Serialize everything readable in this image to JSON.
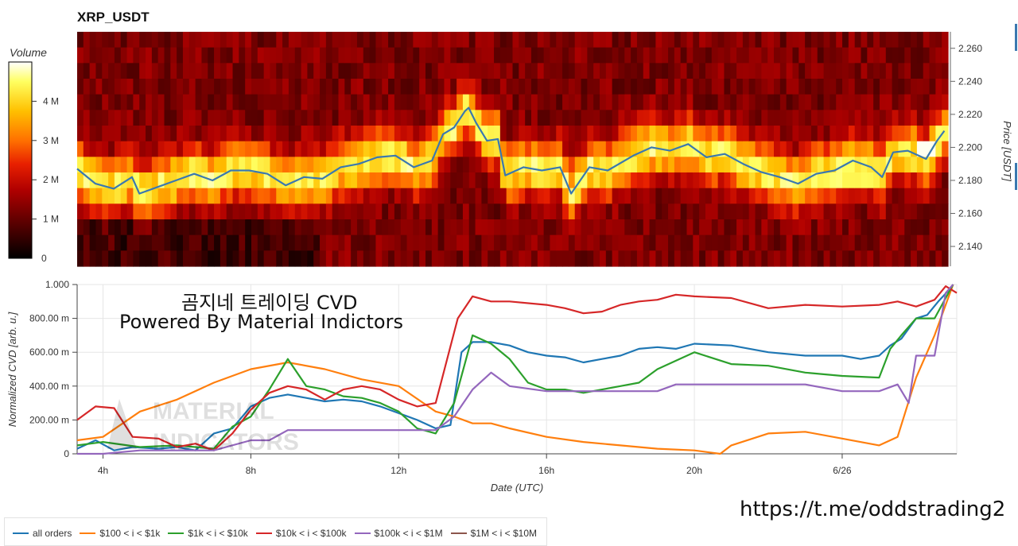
{
  "header": {
    "title": "XRP_USDT"
  },
  "overlay": {
    "line1": "곰지네 트레이딩 CVD",
    "line2": "Powered By Material Indictors",
    "url": "https://t.me/oddstrading2",
    "logo_text": [
      "MATERIAL",
      "INDICATORS"
    ]
  },
  "chart_data": [
    {
      "type": "heatmap",
      "title": "XRP_USDT",
      "colorbar_label": "Volume",
      "colorbar_ticks": [
        "0",
        "1 M",
        "2 M",
        "3 M",
        "4 M"
      ],
      "colorbar_range": [
        0,
        5000000
      ],
      "color_scale": [
        "#000000",
        "#5a0000",
        "#b00000",
        "#e82000",
        "#ff7000",
        "#ffc000",
        "#ffff60",
        "#ffffff"
      ],
      "ylabel": "Price [USDT]",
      "ylim": [
        2.128,
        2.27
      ],
      "yticks": [
        2.14,
        2.16,
        2.18,
        2.2,
        2.22,
        2.24,
        2.26
      ],
      "ytick_labels": [
        "2.140",
        "2.160",
        "2.180",
        "2.200",
        "2.220",
        "2.240",
        "2.260"
      ],
      "xlim_hours": [
        3.3,
        27.1
      ],
      "price_line": {
        "color": "#3a78b0",
        "x_hours": [
          3.3,
          3.8,
          4.3,
          4.8,
          5.0,
          5.5,
          6.0,
          6.5,
          7.0,
          7.5,
          8.0,
          8.5,
          9.0,
          9.5,
          10.0,
          10.5,
          11.0,
          11.5,
          12.0,
          12.5,
          13.0,
          13.3,
          13.6,
          13.9,
          14.0,
          14.2,
          14.5,
          14.8,
          15.0,
          15.5,
          16.0,
          16.5,
          16.8,
          17.3,
          17.8,
          18.5,
          19.0,
          19.5,
          20.0,
          20.5,
          21.0,
          21.5,
          22.0,
          22.5,
          23.0,
          23.5,
          24.0,
          24.5,
          25.0,
          25.3,
          25.6,
          26.0,
          26.5,
          26.8,
          27.0
        ],
        "y": [
          2.187,
          2.178,
          2.175,
          2.182,
          2.172,
          2.176,
          2.18,
          2.184,
          2.18,
          2.186,
          2.186,
          2.184,
          2.177,
          2.182,
          2.181,
          2.188,
          2.19,
          2.194,
          2.195,
          2.188,
          2.192,
          2.208,
          2.212,
          2.222,
          2.224,
          2.215,
          2.204,
          2.205,
          2.183,
          2.188,
          2.186,
          2.188,
          2.172,
          2.188,
          2.186,
          2.195,
          2.2,
          2.198,
          2.202,
          2.194,
          2.196,
          2.19,
          2.185,
          2.182,
          2.178,
          2.184,
          2.186,
          2.192,
          2.188,
          2.182,
          2.197,
          2.198,
          2.193,
          2.204,
          2.21
        ]
      }
    },
    {
      "type": "line",
      "xlabel": "Date (UTC)",
      "ylabel": "Normalized CVD [arb. u.]",
      "xlim_hours": [
        3.3,
        27.1
      ],
      "ylim": [
        0,
        1.0
      ],
      "yticks": [
        0,
        0.2,
        0.4,
        0.6,
        0.8,
        1.0
      ],
      "ytick_labels": [
        "0",
        "200.00 m",
        "400.00 m",
        "600.00 m",
        "800.00 m",
        "1.000"
      ],
      "xticks_hours": [
        4,
        8,
        12,
        16,
        20,
        24
      ],
      "xtick_labels": [
        "4h",
        "8h",
        "12h",
        "16h",
        "20h",
        "6/26"
      ],
      "grid": true,
      "legend_position": "bottom-left",
      "series": [
        {
          "name": "all orders",
          "color": "#1f77b4",
          "x": [
            3.3,
            3.8,
            4.3,
            4.8,
            5.5,
            6.0,
            6.5,
            7.0,
            7.5,
            8.0,
            8.5,
            9.0,
            9.5,
            10.0,
            10.5,
            11.0,
            11.5,
            12.0,
            12.5,
            13.0,
            13.4,
            13.7,
            14.0,
            14.5,
            15.0,
            15.5,
            16.0,
            16.5,
            17.0,
            17.5,
            18.0,
            18.5,
            19.0,
            19.5,
            20.0,
            21.0,
            22.0,
            23.0,
            24.0,
            24.5,
            25.0,
            25.3,
            25.6,
            26.0,
            26.3,
            26.6,
            26.9,
            27.0
          ],
          "y": [
            0.03,
            0.08,
            0.02,
            0.04,
            0.03,
            0.04,
            0.02,
            0.12,
            0.15,
            0.28,
            0.33,
            0.35,
            0.33,
            0.31,
            0.32,
            0.31,
            0.28,
            0.24,
            0.2,
            0.15,
            0.17,
            0.6,
            0.66,
            0.66,
            0.64,
            0.6,
            0.58,
            0.57,
            0.54,
            0.56,
            0.58,
            0.62,
            0.63,
            0.62,
            0.65,
            0.64,
            0.6,
            0.58,
            0.58,
            0.56,
            0.58,
            0.64,
            0.68,
            0.8,
            0.82,
            0.9,
            0.97,
            1.0
          ]
        },
        {
          "name": "$100 < i < $1k",
          "color": "#ff7f0e",
          "x": [
            3.3,
            4.0,
            5.0,
            6.0,
            7.0,
            8.0,
            9.0,
            10.0,
            11.0,
            12.0,
            13.0,
            13.5,
            14.0,
            14.5,
            15.0,
            16.0,
            17.0,
            18.0,
            19.0,
            20.0,
            20.7,
            21.0,
            22.0,
            23.0,
            24.0,
            25.0,
            25.5,
            26.0,
            26.5,
            27.0
          ],
          "y": [
            0.08,
            0.1,
            0.25,
            0.32,
            0.42,
            0.5,
            0.54,
            0.5,
            0.44,
            0.4,
            0.25,
            0.22,
            0.18,
            0.18,
            0.15,
            0.1,
            0.07,
            0.05,
            0.03,
            0.02,
            0.0,
            0.05,
            0.12,
            0.13,
            0.09,
            0.05,
            0.1,
            0.45,
            0.7,
            1.0
          ]
        },
        {
          "name": "$1k < i < $10k",
          "color": "#2ca02c",
          "x": [
            3.3,
            4.0,
            5.0,
            6.0,
            7.0,
            7.5,
            8.0,
            8.5,
            9.0,
            9.5,
            10.0,
            10.5,
            11.0,
            11.5,
            12.0,
            12.5,
            13.0,
            13.5,
            14.0,
            14.5,
            15.0,
            15.5,
            16.0,
            16.5,
            17.0,
            17.5,
            18.0,
            18.5,
            19.0,
            19.5,
            20.0,
            21.0,
            22.0,
            23.0,
            24.0,
            25.0,
            25.3,
            25.6,
            26.0,
            26.5,
            27.0
          ],
          "y": [
            0.05,
            0.07,
            0.04,
            0.05,
            0.03,
            0.16,
            0.22,
            0.38,
            0.56,
            0.4,
            0.38,
            0.34,
            0.33,
            0.3,
            0.25,
            0.15,
            0.12,
            0.3,
            0.7,
            0.65,
            0.56,
            0.42,
            0.38,
            0.38,
            0.36,
            0.38,
            0.4,
            0.42,
            0.5,
            0.55,
            0.6,
            0.53,
            0.52,
            0.48,
            0.46,
            0.45,
            0.62,
            0.7,
            0.8,
            0.8,
            1.0
          ]
        },
        {
          "name": "$10k < i < $100k",
          "color": "#d62728",
          "x": [
            3.3,
            3.8,
            4.3,
            4.8,
            5.5,
            6.0,
            6.5,
            7.0,
            7.5,
            8.0,
            8.5,
            9.0,
            9.5,
            10.0,
            10.5,
            11.0,
            11.5,
            12.0,
            12.5,
            13.0,
            13.3,
            13.6,
            14.0,
            14.5,
            15.0,
            16.0,
            16.5,
            17.0,
            17.5,
            18.0,
            18.5,
            19.0,
            19.5,
            20.0,
            21.0,
            22.0,
            23.0,
            24.0,
            25.0,
            25.5,
            26.0,
            26.5,
            26.8,
            27.1
          ],
          "y": [
            0.2,
            0.28,
            0.27,
            0.1,
            0.09,
            0.04,
            0.06,
            0.02,
            0.12,
            0.26,
            0.36,
            0.4,
            0.38,
            0.32,
            0.38,
            0.4,
            0.38,
            0.32,
            0.28,
            0.3,
            0.55,
            0.8,
            0.93,
            0.9,
            0.9,
            0.88,
            0.86,
            0.83,
            0.84,
            0.88,
            0.9,
            0.91,
            0.94,
            0.93,
            0.92,
            0.86,
            0.88,
            0.87,
            0.88,
            0.9,
            0.87,
            0.91,
            0.99,
            0.95
          ]
        },
        {
          "name": "$100k < i < $1M",
          "color": "#9467bd",
          "x": [
            3.3,
            4.0,
            5.0,
            6.0,
            7.0,
            8.0,
            8.5,
            9.0,
            10.0,
            11.0,
            12.0,
            13.0,
            13.5,
            14.0,
            14.5,
            15.0,
            16.0,
            17.0,
            18.0,
            19.0,
            19.5,
            20.0,
            21.0,
            22.0,
            23.0,
            24.0,
            25.0,
            25.5,
            25.8,
            26.0,
            26.5,
            26.8,
            27.0
          ],
          "y": [
            0.0,
            0.0,
            0.02,
            0.02,
            0.02,
            0.08,
            0.08,
            0.14,
            0.14,
            0.14,
            0.14,
            0.14,
            0.22,
            0.38,
            0.48,
            0.4,
            0.37,
            0.37,
            0.37,
            0.37,
            0.41,
            0.41,
            0.41,
            0.41,
            0.41,
            0.37,
            0.37,
            0.41,
            0.3,
            0.58,
            0.58,
            0.95,
            1.0
          ]
        },
        {
          "name": "$1M < i < $10M",
          "color": "#8c564b",
          "x": [],
          "y": []
        }
      ]
    }
  ]
}
